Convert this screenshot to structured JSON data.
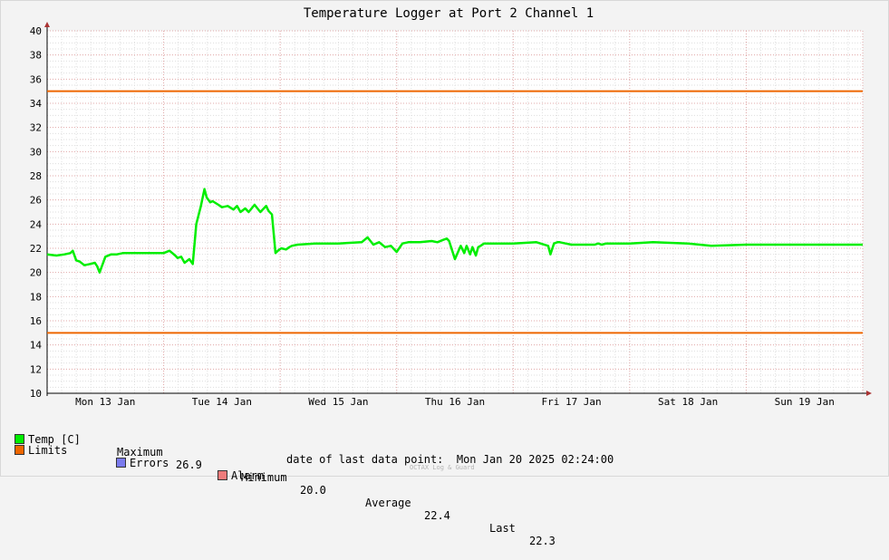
{
  "chart_data": {
    "type": "line",
    "title": "Temperature Logger at Port 2 Channel 1",
    "x_range_days": [
      0,
      7
    ],
    "x_tick_labels": [
      "Mon 13 Jan",
      "Tue 14 Jan",
      "Wed 15 Jan",
      "Thu 16 Jan",
      "Fri 17 Jan",
      "Sat 18 Jan",
      "Sun 19 Jan"
    ],
    "ylim": [
      10,
      40
    ],
    "y_ticks": [
      10,
      12,
      14,
      16,
      18,
      20,
      22,
      24,
      26,
      28,
      30,
      32,
      34,
      36,
      38,
      40
    ],
    "grid": true,
    "series": [
      {
        "name": "Temp [C]",
        "color": "#00ee00",
        "x": [
          0.0,
          0.08,
          0.15,
          0.2,
          0.22,
          0.25,
          0.28,
          0.32,
          0.37,
          0.41,
          0.43,
          0.45,
          0.5,
          0.55,
          0.6,
          0.65,
          0.7,
          0.8,
          0.9,
          1.0,
          1.05,
          1.1,
          1.12,
          1.15,
          1.18,
          1.22,
          1.25,
          1.28,
          1.32,
          1.35,
          1.37,
          1.4,
          1.42,
          1.47,
          1.5,
          1.55,
          1.6,
          1.63,
          1.66,
          1.7,
          1.73,
          1.78,
          1.83,
          1.88,
          1.9,
          1.93,
          1.96,
          1.98,
          2.01,
          2.05,
          2.08,
          2.1,
          2.15,
          2.3,
          2.5,
          2.7,
          2.75,
          2.8,
          2.85,
          2.9,
          2.95,
          3.0,
          3.05,
          3.1,
          3.2,
          3.3,
          3.35,
          3.4,
          3.43,
          3.45,
          3.5,
          3.55,
          3.58,
          3.6,
          3.63,
          3.65,
          3.68,
          3.7,
          3.72,
          3.75,
          3.8,
          3.9,
          4.0,
          4.2,
          4.3,
          4.32,
          4.35,
          4.38,
          4.4,
          4.45,
          4.5,
          4.6,
          4.7,
          4.73,
          4.76,
          4.8,
          5.0,
          5.2,
          5.5,
          5.7,
          6.0,
          6.2,
          6.3,
          6.35,
          6.5,
          6.7,
          6.8,
          7.0
        ],
        "y": [
          21.5,
          21.4,
          21.5,
          21.6,
          21.8,
          21.0,
          20.9,
          20.6,
          20.7,
          20.8,
          20.5,
          20.0,
          21.3,
          21.5,
          21.5,
          21.6,
          21.6,
          21.6,
          21.6,
          21.6,
          21.8,
          21.4,
          21.2,
          21.3,
          20.8,
          21.1,
          20.7,
          24.0,
          25.5,
          26.9,
          26.2,
          25.8,
          25.9,
          25.6,
          25.4,
          25.5,
          25.2,
          25.5,
          25.0,
          25.3,
          25.0,
          25.6,
          25.0,
          25.5,
          25.1,
          24.8,
          21.6,
          21.8,
          22.0,
          21.9,
          22.1,
          22.2,
          22.3,
          22.4,
          22.4,
          22.5,
          22.9,
          22.3,
          22.5,
          22.1,
          22.2,
          21.7,
          22.4,
          22.5,
          22.5,
          22.6,
          22.5,
          22.7,
          22.8,
          22.6,
          21.1,
          22.2,
          21.6,
          22.2,
          21.5,
          22.1,
          21.4,
          22.1,
          22.2,
          22.4,
          22.4,
          22.4,
          22.4,
          22.5,
          22.2,
          21.5,
          22.4,
          22.5,
          22.5,
          22.4,
          22.3,
          22.3,
          22.3,
          22.4,
          22.3,
          22.4,
          22.4,
          22.5,
          22.4,
          22.2,
          22.3,
          22.3,
          22.3,
          22.3,
          22.3,
          22.3,
          22.3,
          22.3
        ]
      },
      {
        "name": "Limits",
        "color": "#ee6600",
        "lines": [
          35,
          15
        ]
      },
      {
        "name": "Errors",
        "color": "#7b7bee"
      },
      {
        "name": "Alarm",
        "color": "#ee7b7b"
      }
    ]
  },
  "legend": {
    "temp_label": "Temp [C]",
    "maximum_label": "Maximum",
    "maximum_value": "26.9",
    "minimum_label": "Minimum",
    "minimum_value": "20.0",
    "average_label": "Average",
    "average_value": "22.4",
    "last_label": "Last",
    "last_value": "22.3",
    "limits_label": "Limits",
    "errors_label": "Errors",
    "alarm_label": "Alarm"
  },
  "footer": {
    "last_point": "date of last data point:  Mon Jan 20 2025 02:24:00",
    "brand": "OCTAX Log & Guard"
  }
}
